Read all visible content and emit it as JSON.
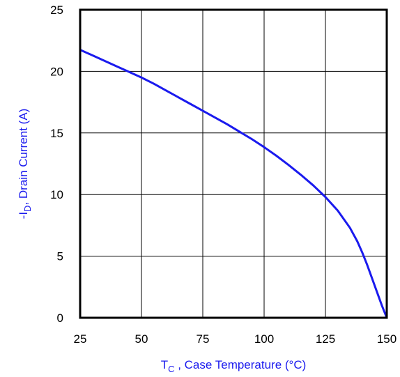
{
  "chart_data": {
    "type": "line",
    "xlabel_main": "T",
    "xlabel_sub": "C",
    "xlabel_rest": " , Case Temperature (°C)",
    "ylabel_main": "-I",
    "ylabel_sub": "D",
    "ylabel_rest": ",  Drain Current (A)",
    "xlim": [
      25,
      150
    ],
    "ylim": [
      0,
      25
    ],
    "x_ticks": [
      25,
      50,
      75,
      100,
      125,
      150
    ],
    "y_ticks": [
      0,
      5,
      10,
      15,
      20,
      25
    ],
    "grid": true,
    "colors": {
      "series": "#1a1aee",
      "axis_label": "#1a1aee",
      "frame": "#000000",
      "grid": "#000000"
    },
    "series": [
      {
        "x": [
          25,
          30,
          35,
          40,
          45,
          50,
          55,
          60,
          65,
          70,
          75,
          80,
          85,
          90,
          95,
          100,
          105,
          110,
          115,
          120,
          125,
          130,
          135,
          138,
          140,
          142,
          144,
          146,
          148,
          150
        ],
        "values": [
          21.75,
          21.3,
          20.85,
          20.4,
          19.95,
          19.5,
          19.0,
          18.45,
          17.9,
          17.35,
          16.8,
          16.25,
          15.7,
          15.1,
          14.5,
          13.85,
          13.15,
          12.4,
          11.6,
          10.75,
          9.8,
          8.7,
          7.3,
          6.2,
          5.3,
          4.3,
          3.2,
          2.1,
          1.0,
          0.0
        ]
      }
    ]
  }
}
